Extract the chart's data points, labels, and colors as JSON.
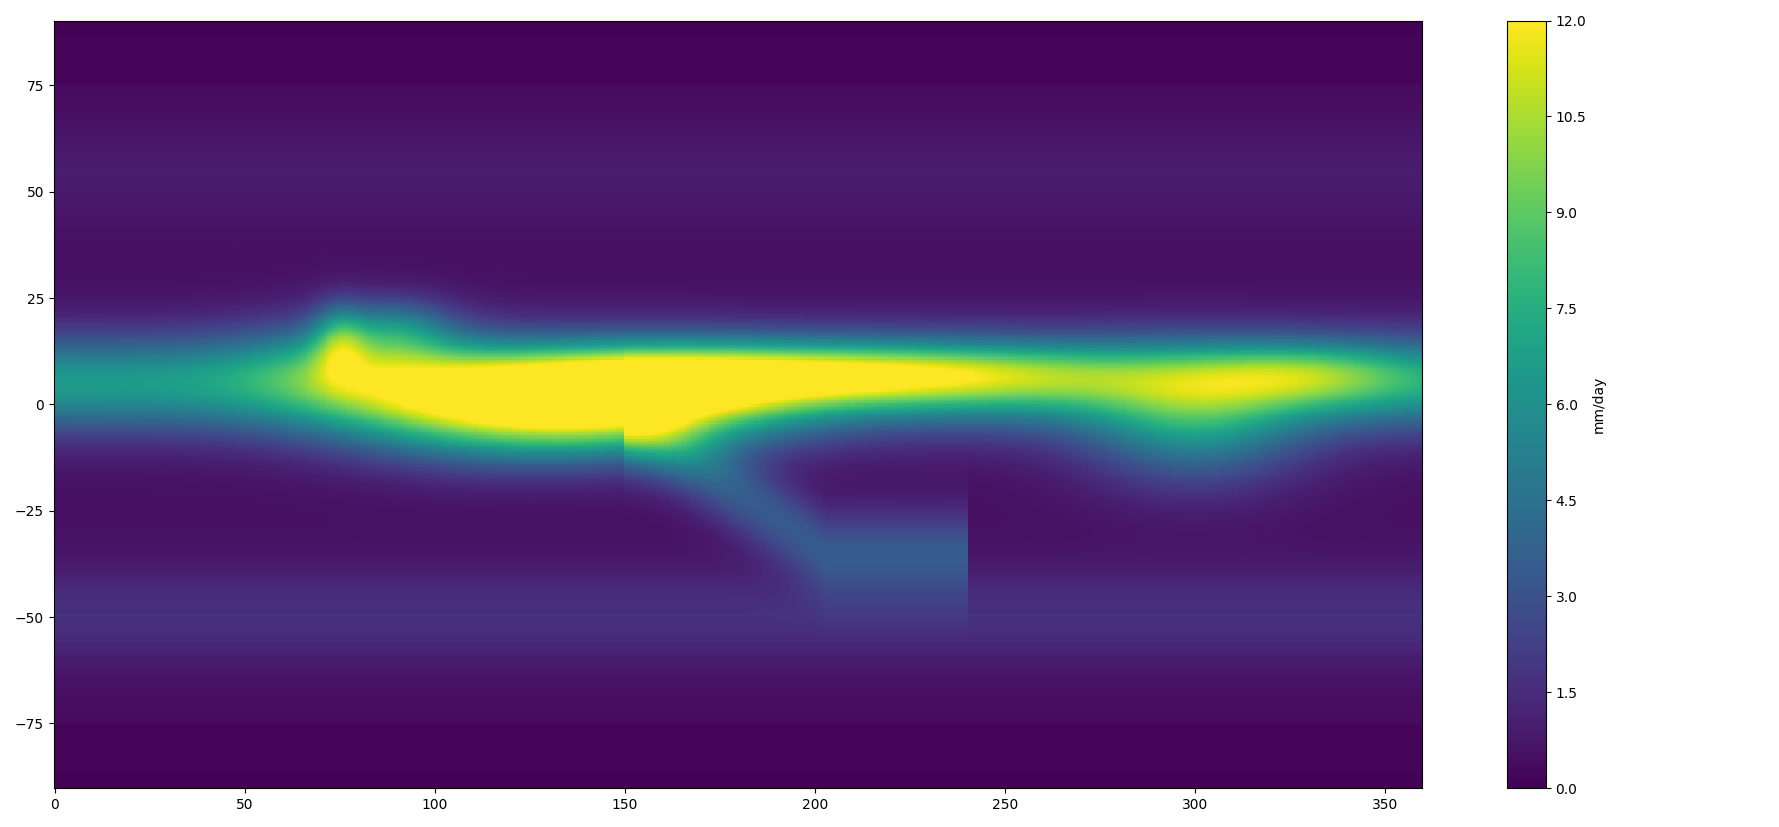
{
  "title": "",
  "colorbar_label": "mm/day",
  "colorbar_ticks": [
    0.0,
    1.5,
    3.0,
    4.5,
    6.0,
    7.5,
    9.0,
    10.5,
    12.0
  ],
  "vmin": 0.0,
  "vmax": 12.0,
  "cmap": "viridis",
  "central_longitude": 150,
  "figsize": [
    17.79,
    8.27
  ],
  "dpi": 100,
  "background_color": "white",
  "coastline_color": "black",
  "coastline_linewidth": 0.8
}
